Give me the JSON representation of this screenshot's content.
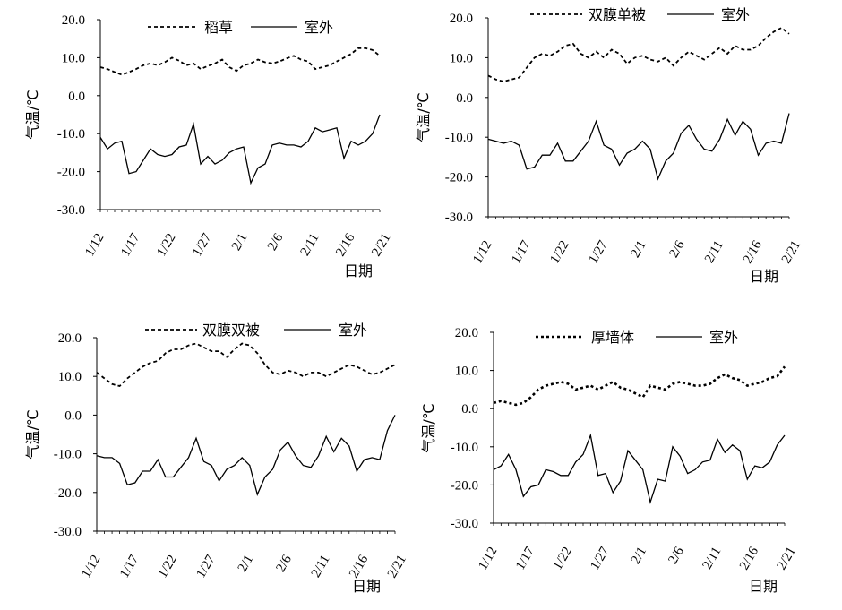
{
  "chart_data": [
    {
      "type": "line",
      "xlabel": "日期",
      "ylabel": "气温/℃",
      "ylim": [
        -30,
        20
      ],
      "y_ticks": [
        "20.0",
        "10.0",
        "0.0",
        "-10.0",
        "-20.0",
        "-30.0"
      ],
      "x_tick_labels": [
        "1/12",
        "1/17",
        "1/22",
        "1/27",
        "2/1",
        "2/6",
        "2/11",
        "2/16",
        "2/21"
      ],
      "grid": false,
      "legend_position": "top",
      "series": [
        {
          "name": "稻草",
          "style": "dashed",
          "values": [
            7.5,
            7,
            6.2,
            5.5,
            6.2,
            7,
            8,
            8.5,
            8,
            8.8,
            10,
            9.2,
            8,
            8.5,
            7,
            7.8,
            8.5,
            9.5,
            7.5,
            6.5,
            8,
            8.5,
            9.5,
            8.8,
            8.5,
            9,
            9.8,
            10.5,
            9.5,
            9,
            7,
            7.5,
            8,
            9,
            10,
            11,
            12.5,
            12.5,
            12,
            10.5
          ]
        },
        {
          "name": "室外",
          "style": "solid",
          "values": [
            -11,
            -14,
            -12.5,
            -12,
            -20.5,
            -20,
            -17,
            -14,
            -15.5,
            -16,
            -15.5,
            -13.5,
            -13,
            -7.5,
            -18,
            -16,
            -18,
            -17,
            -15,
            -14,
            -13.5,
            -23,
            -19,
            -18,
            -13,
            -12.5,
            -13,
            -13,
            -13.5,
            -12,
            -8.5,
            -9.5,
            -9,
            -8.5,
            -16.5,
            -12,
            -13,
            -12,
            -10,
            -5
          ]
        }
      ]
    },
    {
      "type": "line",
      "xlabel": "日期",
      "ylabel": "气温/℃",
      "ylim": [
        -30,
        20
      ],
      "y_ticks": [
        "20.0",
        "10.0",
        "0.0",
        "-10.0",
        "-20.0",
        "-30.0"
      ],
      "x_tick_labels": [
        "1/12",
        "1/17",
        "1/22",
        "1/27",
        "2/1",
        "2/6",
        "2/11",
        "2/16",
        "2/21"
      ],
      "grid": false,
      "legend_position": "top",
      "series": [
        {
          "name": "双膜单被",
          "style": "dashed",
          "values": [
            5.5,
            4.5,
            4,
            4.5,
            5,
            7.5,
            10,
            11,
            10.5,
            11.5,
            13,
            13.5,
            11,
            10,
            11.5,
            10,
            12,
            11,
            8.5,
            10,
            10.5,
            9.5,
            9,
            10,
            8,
            10,
            11.5,
            10.5,
            9.5,
            11,
            12.5,
            11,
            13,
            12,
            12,
            13,
            15,
            16.5,
            17.5,
            16
          ]
        },
        {
          "name": "室外",
          "style": "solid",
          "values": [
            -10.5,
            -11,
            -11.5,
            -11,
            -12,
            -18,
            -17.5,
            -14.5,
            -14.5,
            -11.5,
            -16,
            -16,
            -13.5,
            -11,
            -6,
            -12,
            -13,
            -17,
            -14,
            -13,
            -11,
            -13,
            -20.5,
            -16,
            -14,
            -9,
            -7,
            -10.5,
            -13,
            -13.5,
            -10.5,
            -5.5,
            -9.5,
            -6,
            -8,
            -14.5,
            -11.5,
            -11,
            -11.5,
            -4
          ]
        }
      ]
    },
    {
      "type": "line",
      "xlabel": "日期",
      "ylabel": "气温/℃",
      "ylim": [
        -30,
        20
      ],
      "y_ticks": [
        "20.0",
        "10.0",
        "0.0",
        "-10.0",
        "-20.0",
        "-30.0"
      ],
      "x_tick_labels": [
        "1/12",
        "1/17",
        "1/22",
        "1/27",
        "2/1",
        "2/6",
        "2/11",
        "2/16",
        "2/21"
      ],
      "grid": false,
      "legend_position": "top",
      "series": [
        {
          "name": "双膜双被",
          "style": "dashed",
          "values": [
            11,
            9.5,
            8,
            7.5,
            9.5,
            11,
            12.5,
            13.5,
            14,
            16,
            17,
            17,
            18,
            18.5,
            17.5,
            16.5,
            16.5,
            15,
            17,
            18.5,
            18,
            16,
            13,
            11,
            10.5,
            11.5,
            11,
            10,
            11,
            11,
            10,
            11,
            12,
            13,
            12.5,
            11.5,
            10.5,
            11,
            12,
            13
          ]
        },
        {
          "name": "室外",
          "style": "solid",
          "values": [
            -10.5,
            -11,
            -11,
            -12.5,
            -18,
            -17.5,
            -14.5,
            -14.5,
            -11.5,
            -16,
            -16,
            -13.5,
            -11,
            -6,
            -12,
            -13,
            -17,
            -14,
            -13,
            -11,
            -13,
            -20.5,
            -16,
            -14,
            -9,
            -7,
            -10.5,
            -13,
            -13.5,
            -10.5,
            -5.5,
            -9.5,
            -6,
            -8,
            -14.5,
            -11.5,
            -11,
            -11.5,
            -4,
            0
          ]
        }
      ]
    },
    {
      "type": "line",
      "xlabel": "日期",
      "ylabel": "气温/℃",
      "ylim": [
        -30,
        20
      ],
      "y_ticks": [
        "20.0",
        "10.0",
        "0.0",
        "-10.0",
        "-20.0",
        "-30.0"
      ],
      "x_tick_labels": [
        "1/12",
        "1/17",
        "1/22",
        "1/27",
        "2/1",
        "2/6",
        "2/11",
        "2/16",
        "2/21"
      ],
      "grid": false,
      "legend_position": "top",
      "series": [
        {
          "name": "厚墙体",
          "style": "dotted",
          "values": [
            1.5,
            2,
            1.5,
            1,
            1.5,
            3,
            5,
            6,
            6.5,
            7,
            6.5,
            5,
            5.5,
            6,
            5,
            6,
            7,
            5.5,
            5,
            4,
            3,
            6,
            5.5,
            5,
            6.5,
            7,
            6.5,
            6,
            6,
            6.5,
            8,
            9,
            8,
            7.5,
            6,
            6.5,
            7,
            8,
            8.5,
            11
          ]
        },
        {
          "name": "室外",
          "style": "solid",
          "values": [
            -16,
            -15,
            -12,
            -16,
            -23,
            -20.5,
            -20,
            -16,
            -16.5,
            -17.5,
            -17.5,
            -14,
            -12,
            -7,
            -17.5,
            -17,
            -22,
            -19,
            -11,
            -13.5,
            -16,
            -24.5,
            -18.5,
            -19,
            -10,
            -12.5,
            -17,
            -16,
            -14,
            -13.5,
            -8,
            -11.5,
            -9.5,
            -11,
            -18.5,
            -15,
            -15.5,
            -14,
            -9.5,
            -7
          ]
        }
      ]
    }
  ]
}
